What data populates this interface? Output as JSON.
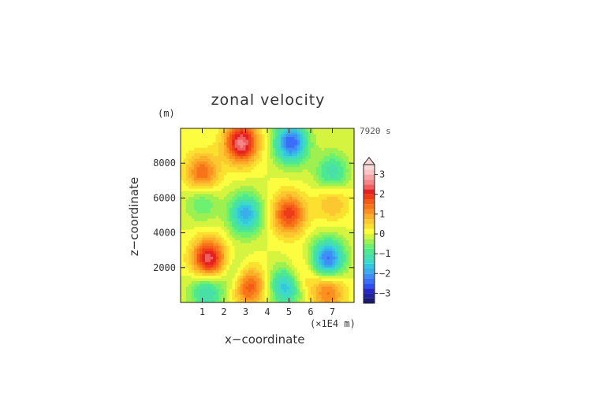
{
  "chart_data": {
    "type": "heatmap",
    "title": "zonal velocity",
    "xlabel": "x−coordinate",
    "ylabel": "z−coordinate",
    "x_unit_label": "(×1E4 m)",
    "y_unit_label": "(m)",
    "time_label": "7920 s",
    "xlim": [
      0,
      8
    ],
    "ylim": [
      0,
      10000
    ],
    "x_ticks": [
      1,
      2,
      3,
      4,
      5,
      6,
      7
    ],
    "y_ticks": [
      2000,
      4000,
      6000,
      8000
    ],
    "colorbar": {
      "ticks": [
        3,
        2,
        1,
        0,
        -1,
        -2,
        -3
      ],
      "range": [
        -3.5,
        3.5
      ],
      "levels": [
        -3.5,
        -3.25,
        -3,
        -2.75,
        -2.5,
        -2.25,
        -2,
        -1.75,
        -1.5,
        -1.25,
        -1,
        -0.75,
        -0.5,
        -0.25,
        0,
        0.25,
        0.5,
        0.75,
        1,
        1.25,
        1.5,
        1.75,
        2,
        2.25,
        2.5,
        2.75,
        3,
        3.25,
        3.5
      ],
      "colors": [
        "#1a1a70",
        "#22229a",
        "#2828c8",
        "#2e4ef0",
        "#3a6ef8",
        "#3f8ef8",
        "#3aaee8",
        "#33c7e0",
        "#3edac8",
        "#48e0a8",
        "#4ee890",
        "#6ef070",
        "#9ef050",
        "#d4f440",
        "#fcfc40",
        "#fce030",
        "#fcc830",
        "#fcae28",
        "#fc9020",
        "#f87418",
        "#f45a18",
        "#ee3c1a",
        "#e42020",
        "#f06060",
        "#f48888",
        "#f6a4a4",
        "#f8c4c4",
        "#fad8d8"
      ],
      "extend_top": true
    },
    "features": [
      {
        "x": 2.8,
        "z": 9200,
        "value": 2.6
      },
      {
        "x": 5.1,
        "z": 9200,
        "value": -2.5
      },
      {
        "x": 1.0,
        "z": 7400,
        "value": 1.6
      },
      {
        "x": 7.0,
        "z": 7400,
        "value": -1.3
      },
      {
        "x": 3.0,
        "z": 5100,
        "value": -1.9
      },
      {
        "x": 5.0,
        "z": 5100,
        "value": 1.9
      },
      {
        "x": 1.0,
        "z": 5900,
        "value": -0.9
      },
      {
        "x": 7.0,
        "z": 5900,
        "value": 0.9
      },
      {
        "x": 1.3,
        "z": 2500,
        "value": 2.5
      },
      {
        "x": 6.8,
        "z": 2500,
        "value": -2.4
      },
      {
        "x": 1.2,
        "z": 700,
        "value": -1.4
      },
      {
        "x": 6.8,
        "z": 700,
        "value": 1.4
      },
      {
        "x": 3.1,
        "z": 1000,
        "value": 2.0
      },
      {
        "x": 4.9,
        "z": 1000,
        "value": -2.0
      },
      {
        "x": 2.6,
        "z": 1500,
        "value": -0.9
      },
      {
        "x": 5.4,
        "z": 1500,
        "value": 0.9
      }
    ]
  },
  "colors": {
    "axis": "#222222",
    "text": "#333333"
  }
}
